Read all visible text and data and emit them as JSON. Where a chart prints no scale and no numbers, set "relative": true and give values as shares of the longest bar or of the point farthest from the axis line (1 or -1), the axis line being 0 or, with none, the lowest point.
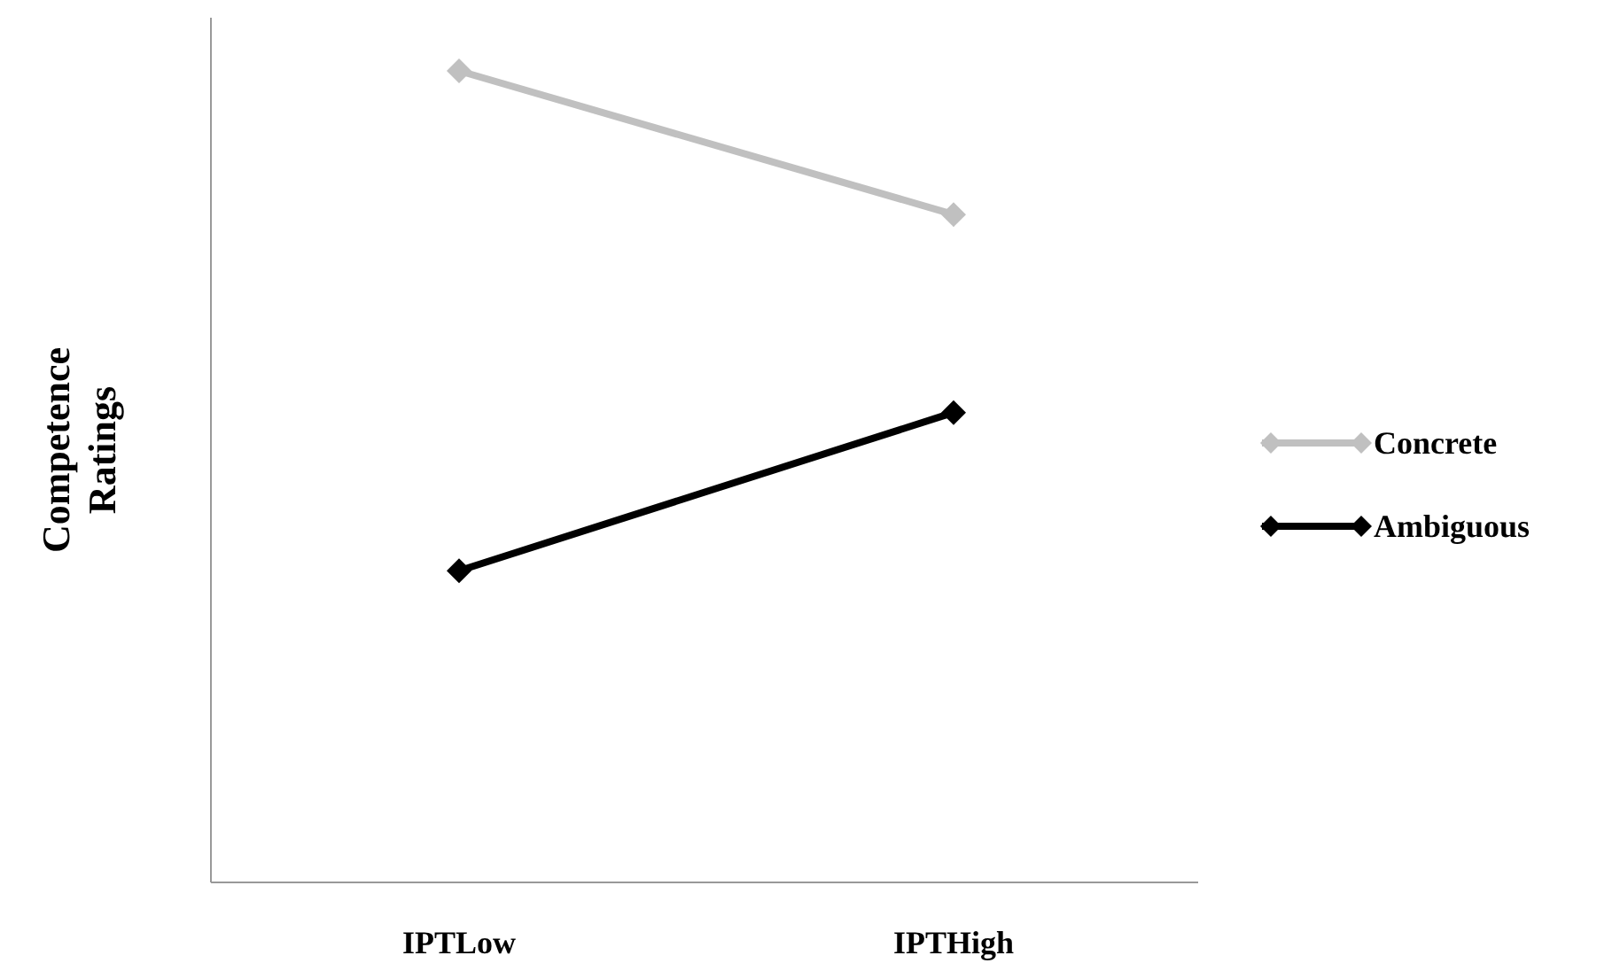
{
  "chart_data": {
    "type": "line",
    "relative": true,
    "ylabel": "Competence Ratings",
    "categories": [
      "IPTLow",
      "IPTHigh"
    ],
    "series": [
      {
        "name": "Concrete",
        "color": "#c0c0c0",
        "values": [
          1,
          0.823
        ]
      },
      {
        "name": "Ambiguous",
        "color": "#000000",
        "values": [
          0.384,
          0.579
        ]
      }
    ],
    "legend": "right",
    "marker": "diamond"
  }
}
